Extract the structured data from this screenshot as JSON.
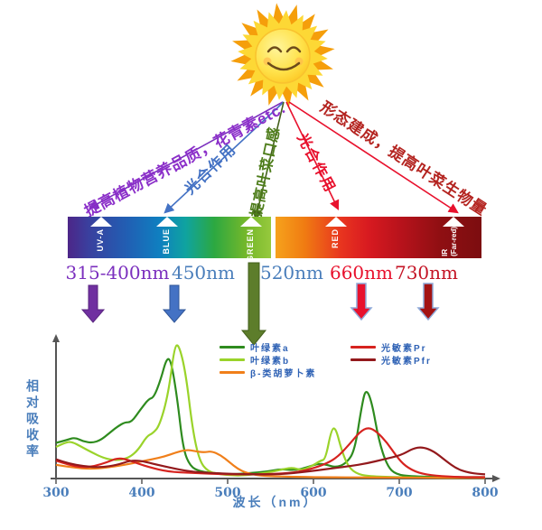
{
  "sun": {
    "name": "smiling-sun"
  },
  "annotations": [
    {
      "text": "提高植物营养品质，花青素etc.",
      "color": "#8b2fc9"
    },
    {
      "text": "光合作用",
      "color": "#4472c4"
    },
    {
      "text": "提高叶菜口感",
      "color": "#4e7d1b"
    },
    {
      "text": "光合作用",
      "color": "#e8112d"
    },
    {
      "text": "形态建成，提高叶菜生物量",
      "color": "#b42420"
    }
  ],
  "spectrum": {
    "bands": [
      {
        "label": "UV-A"
      },
      {
        "label": "BLUE"
      },
      {
        "label": "GREEN"
      },
      {
        "label": "RED"
      },
      {
        "label": "IR",
        "sub": "(Far-red)"
      }
    ]
  },
  "wavelengths": [
    {
      "text": "315-400nm",
      "color": "#7b2fbe"
    },
    {
      "text": "450nm",
      "color": "#4a7ebb"
    },
    {
      "text": "520nm",
      "color": "#4a7ebb"
    },
    {
      "text": "660nm",
      "color": "#e8112d"
    },
    {
      "text": "730nm",
      "color": "#c41425"
    }
  ],
  "chart_data": {
    "type": "line",
    "title": "",
    "xlabel": "波长（nm）",
    "ylabel": "相对吸收率",
    "x_ticks": [
      300,
      400,
      500,
      600,
      700,
      800
    ],
    "xlim": [
      300,
      800
    ],
    "ylim": [
      0,
      1
    ],
    "grid": false,
    "legend_position": "top-inside",
    "series": [
      {
        "name": "chlorophyll-a",
        "label": "叶绿素a",
        "color": "#2e8b1e",
        "points": [
          [
            300,
            0.26
          ],
          [
            312,
            0.28
          ],
          [
            322,
            0.3
          ],
          [
            332,
            0.27
          ],
          [
            342,
            0.26
          ],
          [
            352,
            0.28
          ],
          [
            362,
            0.33
          ],
          [
            372,
            0.38
          ],
          [
            380,
            0.41
          ],
          [
            388,
            0.41
          ],
          [
            398,
            0.5
          ],
          [
            408,
            0.58
          ],
          [
            414,
            0.59
          ],
          [
            422,
            0.72
          ],
          [
            429,
            0.88
          ],
          [
            434,
            0.86
          ],
          [
            441,
            0.6
          ],
          [
            448,
            0.22
          ],
          [
            456,
            0.09
          ],
          [
            468,
            0.05
          ],
          [
            485,
            0.04
          ],
          [
            505,
            0.03
          ],
          [
            525,
            0.04
          ],
          [
            545,
            0.05
          ],
          [
            562,
            0.07
          ],
          [
            578,
            0.06
          ],
          [
            592,
            0.08
          ],
          [
            606,
            0.11
          ],
          [
            616,
            0.1
          ],
          [
            626,
            0.08
          ],
          [
            638,
            0.11
          ],
          [
            648,
            0.2
          ],
          [
            656,
            0.52
          ],
          [
            661,
            0.66
          ],
          [
            668,
            0.56
          ],
          [
            676,
            0.28
          ],
          [
            686,
            0.09
          ],
          [
            696,
            0.03
          ],
          [
            715,
            0.015
          ],
          [
            760,
            0.01
          ],
          [
            800,
            0.01
          ]
        ]
      },
      {
        "name": "chlorophyll-b",
        "label": "叶绿素b",
        "color": "#9ad32a",
        "points": [
          [
            300,
            0.23
          ],
          [
            310,
            0.26
          ],
          [
            318,
            0.27
          ],
          [
            330,
            0.23
          ],
          [
            342,
            0.19
          ],
          [
            355,
            0.15
          ],
          [
            370,
            0.13
          ],
          [
            385,
            0.15
          ],
          [
            396,
            0.21
          ],
          [
            406,
            0.31
          ],
          [
            413,
            0.33
          ],
          [
            421,
            0.39
          ],
          [
            431,
            0.62
          ],
          [
            438,
            0.96
          ],
          [
            443,
            0.98
          ],
          [
            451,
            0.78
          ],
          [
            459,
            0.36
          ],
          [
            467,
            0.13
          ],
          [
            477,
            0.05
          ],
          [
            492,
            0.03
          ],
          [
            512,
            0.02
          ],
          [
            532,
            0.03
          ],
          [
            552,
            0.05
          ],
          [
            566,
            0.07
          ],
          [
            576,
            0.08
          ],
          [
            586,
            0.06
          ],
          [
            598,
            0.09
          ],
          [
            608,
            0.13
          ],
          [
            614,
            0.14
          ],
          [
            621,
            0.36
          ],
          [
            626,
            0.37
          ],
          [
            633,
            0.2
          ],
          [
            641,
            0.08
          ],
          [
            652,
            0.03
          ],
          [
            668,
            0.015
          ],
          [
            700,
            0.01
          ],
          [
            750,
            0.005
          ],
          [
            800,
            0.005
          ]
        ]
      },
      {
        "name": "beta-carotene",
        "label": "β-类胡萝卜素",
        "color": "#f07f1a",
        "points": [
          [
            300,
            0.1
          ],
          [
            320,
            0.08
          ],
          [
            340,
            0.07
          ],
          [
            360,
            0.08
          ],
          [
            380,
            0.1
          ],
          [
            396,
            0.12
          ],
          [
            412,
            0.14
          ],
          [
            426,
            0.16
          ],
          [
            440,
            0.19
          ],
          [
            452,
            0.21
          ],
          [
            462,
            0.2
          ],
          [
            472,
            0.19
          ],
          [
            481,
            0.2
          ],
          [
            492,
            0.17
          ],
          [
            502,
            0.12
          ],
          [
            512,
            0.07
          ],
          [
            522,
            0.04
          ],
          [
            538,
            0.02
          ],
          [
            560,
            0.015
          ],
          [
            600,
            0.01
          ],
          [
            650,
            0.008
          ],
          [
            700,
            0.006
          ],
          [
            800,
            0.005
          ]
        ]
      },
      {
        "name": "phytochrome-pr",
        "label": "光敏素Pr",
        "color": "#d6231f",
        "points": [
          [
            300,
            0.13
          ],
          [
            315,
            0.1
          ],
          [
            330,
            0.08
          ],
          [
            345,
            0.09
          ],
          [
            360,
            0.12
          ],
          [
            372,
            0.15
          ],
          [
            382,
            0.14
          ],
          [
            395,
            0.11
          ],
          [
            410,
            0.08
          ],
          [
            430,
            0.05
          ],
          [
            460,
            0.04
          ],
          [
            500,
            0.03
          ],
          [
            540,
            0.03
          ],
          [
            572,
            0.04
          ],
          [
            592,
            0.06
          ],
          [
            612,
            0.1
          ],
          [
            627,
            0.15
          ],
          [
            642,
            0.25
          ],
          [
            654,
            0.34
          ],
          [
            664,
            0.375
          ],
          [
            674,
            0.34
          ],
          [
            686,
            0.26
          ],
          [
            697,
            0.16
          ],
          [
            707,
            0.09
          ],
          [
            722,
            0.04
          ],
          [
            742,
            0.02
          ],
          [
            772,
            0.01
          ],
          [
            800,
            0.01
          ]
        ]
      },
      {
        "name": "phytochrome-pfr",
        "label": "光敏素Pfr",
        "color": "#93191c",
        "points": [
          [
            300,
            0.14
          ],
          [
            315,
            0.11
          ],
          [
            332,
            0.09
          ],
          [
            352,
            0.08
          ],
          [
            372,
            0.1
          ],
          [
            386,
            0.13
          ],
          [
            398,
            0.13
          ],
          [
            412,
            0.11
          ],
          [
            432,
            0.08
          ],
          [
            456,
            0.05
          ],
          [
            482,
            0.04
          ],
          [
            522,
            0.03
          ],
          [
            562,
            0.03
          ],
          [
            592,
            0.05
          ],
          [
            617,
            0.07
          ],
          [
            642,
            0.09
          ],
          [
            662,
            0.11
          ],
          [
            682,
            0.14
          ],
          [
            702,
            0.17
          ],
          [
            716,
            0.22
          ],
          [
            727,
            0.23
          ],
          [
            740,
            0.2
          ],
          [
            754,
            0.13
          ],
          [
            767,
            0.07
          ],
          [
            782,
            0.04
          ],
          [
            800,
            0.03
          ]
        ]
      }
    ]
  }
}
